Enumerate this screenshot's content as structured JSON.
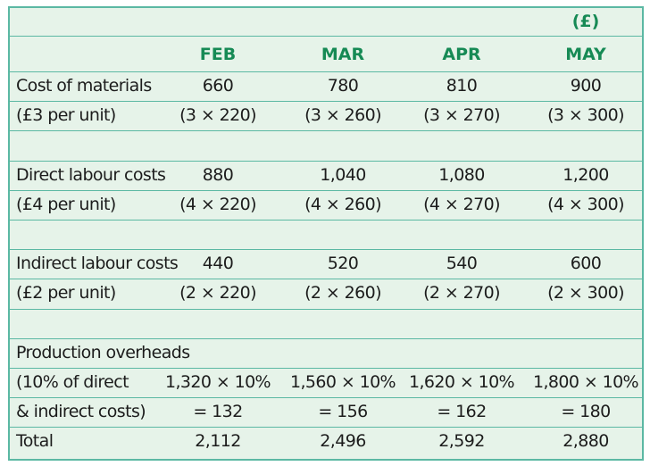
{
  "table": {
    "currency_note": "(£)",
    "columns": [
      "FEB",
      "MAR",
      "APR",
      "MAY"
    ],
    "sections": [
      {
        "rows": [
          [
            "Cost of materials",
            "660",
            "780",
            "810",
            "900"
          ],
          [
            "(£3 per unit)",
            "(3 × 220)",
            "(3 × 260)",
            "(3 × 270)",
            "(3 × 300)"
          ]
        ]
      },
      {
        "rows": [
          [
            "Direct labour costs",
            "880",
            "1,040",
            "1,080",
            "1,200"
          ],
          [
            "(£4 per unit)",
            "(4 × 220)",
            "(4 × 260)",
            "(4 × 270)",
            "(4 × 300)"
          ]
        ]
      },
      {
        "rows": [
          [
            "Indirect labour costs",
            "440",
            "520",
            "540",
            "600"
          ],
          [
            "(£2 per unit)",
            "(2 × 220)",
            "(2 × 260)",
            "(2 × 270)",
            "(2 × 300)"
          ]
        ]
      },
      {
        "rows": [
          [
            "Production overheads"
          ],
          [
            "(10% of direct",
            "1,320 × 10%",
            "1,560 × 10%",
            "1,620 × 10%",
            "1,800 × 10%"
          ],
          [
            "& indirect costs)",
            "= 132",
            "= 156",
            "= 162",
            "= 180"
          ],
          [
            "Total",
            "2,112",
            "2,496",
            "2,592",
            "2,880"
          ]
        ]
      }
    ]
  }
}
